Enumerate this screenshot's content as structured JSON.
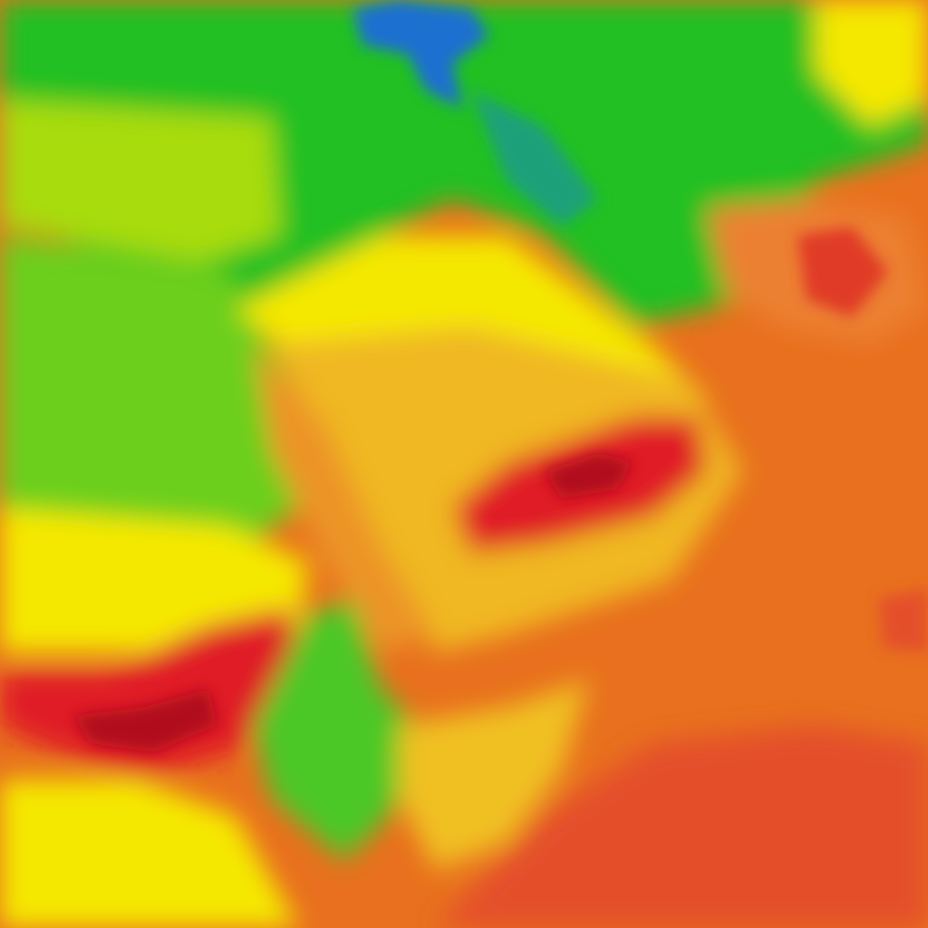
{
  "map": {
    "type": "temperature-heatmap-tile",
    "colors": {
      "cold_blue": "#1e6fd0",
      "teal": "#1aa07a",
      "green": "#22c020",
      "yellow_green": "#a8dc10",
      "yellow": "#f5e800",
      "amber": "#f0b820",
      "orange": "#e8701e",
      "red_orange": "#e4502a",
      "red": "#e01a28",
      "dark_red": "#b00c1c"
    }
  }
}
